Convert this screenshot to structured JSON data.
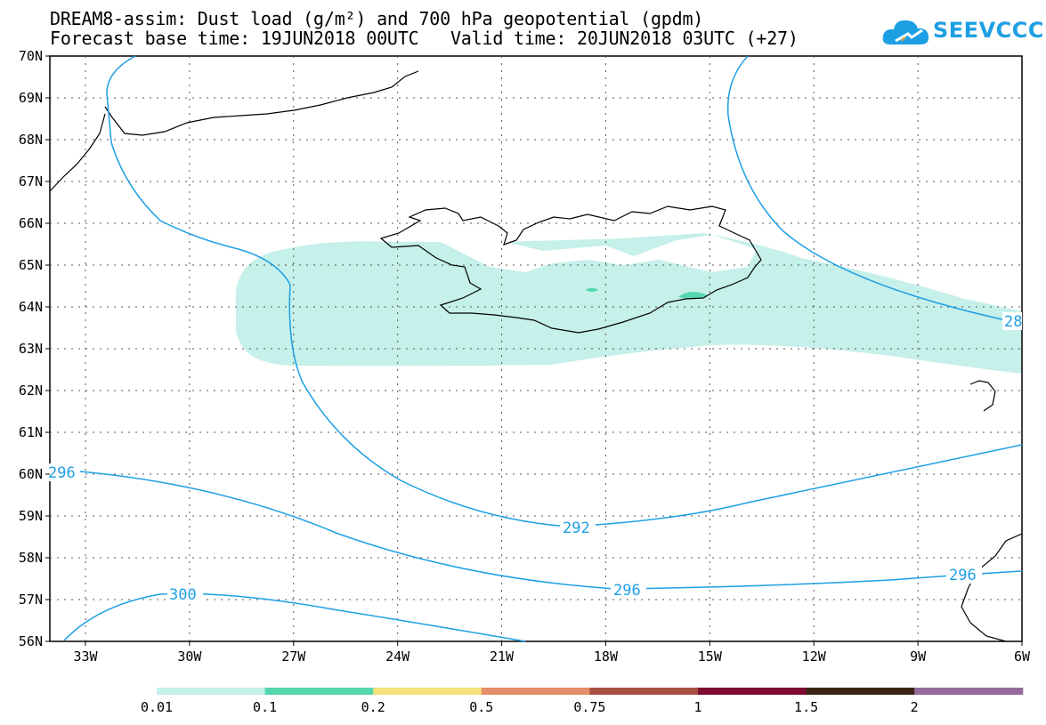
{
  "title": {
    "line1": "DREAM8-assim: Dust load (g/m²) and 700 hPa geopotential (gpdm)",
    "line2": "Forecast base time: 19JUN2018 00UTC   Valid time: 20JUN2018 03UTC (+27)"
  },
  "logo": {
    "text": "SEEVCCC"
  },
  "map": {
    "lat_labels": [
      "70N",
      "69N",
      "68N",
      "67N",
      "66N",
      "65N",
      "64N",
      "63N",
      "62N",
      "61N",
      "60N",
      "59N",
      "58N",
      "57N",
      "56N"
    ],
    "lon_labels": [
      "33W",
      "30W",
      "27W",
      "24W",
      "21W",
      "18W",
      "15W",
      "12W",
      "9W",
      "6W"
    ],
    "contour_labels": [
      "296",
      "292",
      "296",
      "296",
      "300",
      "28"
    ]
  },
  "colorbar": {
    "labels": [
      "0.01",
      "0.1",
      "0.2",
      "0.5",
      "0.75",
      "1",
      "1.5",
      "2"
    ],
    "colors": [
      "#c6f0ea",
      "#55d6ad",
      "#f5e27a",
      "#e58c6a",
      "#a85043",
      "#7d0a2f",
      "#3b2415",
      "#956b9e"
    ]
  },
  "colors": {
    "contour": "#1d9fe3",
    "dust_low": "#c6f0ea",
    "dust_mid": "#55d6ad"
  }
}
